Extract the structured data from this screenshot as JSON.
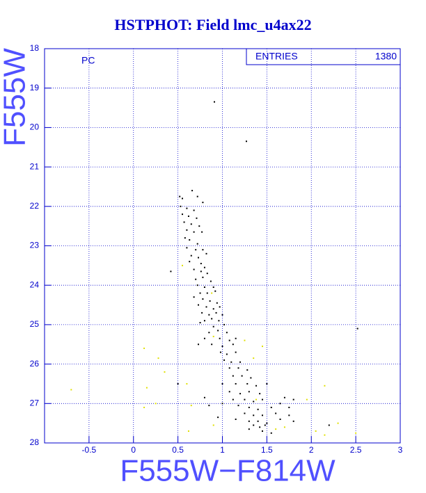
{
  "chart_data": {
    "type": "scatter",
    "title": "HSTPHOT: Field lmc_u4ax22",
    "xlabel": "F555W−F814W",
    "ylabel": "F555W",
    "annotation": "PC",
    "stats_box": {
      "label": "ENTRIES",
      "value": "1380"
    },
    "xlim": [
      -1,
      3
    ],
    "ylim": [
      28,
      18
    ],
    "xticks": [
      -0.5,
      0,
      0.5,
      1,
      1.5,
      2,
      2.5,
      3
    ],
    "yticks": [
      18,
      19,
      20,
      21,
      22,
      23,
      24,
      25,
      26,
      27,
      28
    ],
    "grid": true,
    "axis_color": "#0000cc",
    "series": [
      {
        "color": "#000000",
        "x": [
          0.91,
          1.27,
          0.52,
          0.55,
          0.66,
          0.72,
          0.78,
          0.53,
          0.6,
          0.68,
          0.55,
          0.62,
          0.71,
          0.57,
          0.65,
          0.74,
          0.6,
          0.68,
          0.77,
          0.58,
          0.63,
          0.72,
          0.6,
          0.7,
          0.78,
          0.65,
          0.73,
          0.82,
          0.63,
          0.76,
          0.8,
          0.68,
          0.42,
          0.76,
          0.83,
          0.7,
          0.78,
          0.87,
          0.72,
          0.8,
          0.9,
          0.75,
          0.83,
          0.92,
          0.68,
          0.78,
          0.86,
          0.94,
          0.73,
          0.82,
          0.9,
          0.97,
          0.77,
          0.85,
          0.93,
          1.0,
          0.8,
          0.88,
          0.96,
          0.75,
          0.9,
          1.02,
          0.85,
          0.95,
          1.05,
          0.8,
          0.97,
          1.08,
          1.15,
          0.73,
          0.88,
          1.0,
          1.12,
          0.98,
          1.05,
          1.15,
          1.02,
          1.1,
          1.2,
          1.08,
          1.18,
          1.28,
          1.12,
          1.22,
          1.32,
          1.0,
          1.15,
          1.28,
          1.38,
          1.5,
          1.08,
          1.2,
          1.3,
          1.42,
          0.8,
          1.12,
          1.25,
          1.35,
          1.45,
          1.7,
          1.8,
          0.85,
          1.0,
          1.18,
          1.3,
          1.4,
          1.55,
          1.65,
          1.75,
          1.25,
          1.35,
          1.45,
          1.6,
          1.75,
          0.95,
          1.15,
          1.3,
          1.4,
          1.5,
          1.65,
          1.8,
          1.35,
          1.42,
          1.48,
          1.3,
          1.45,
          1.55,
          0.5,
          2.52,
          2.2
        ],
        "y": [
          19.35,
          20.35,
          21.75,
          21.8,
          21.6,
          21.75,
          21.9,
          22.0,
          22.05,
          22.1,
          22.2,
          22.25,
          22.3,
          22.4,
          22.45,
          22.5,
          22.6,
          22.65,
          22.65,
          22.8,
          22.85,
          22.95,
          23.05,
          23.1,
          23.1,
          23.25,
          23.3,
          23.2,
          23.4,
          23.45,
          23.55,
          23.6,
          23.65,
          23.65,
          23.7,
          23.85,
          23.8,
          23.9,
          24.0,
          24.05,
          24.05,
          24.2,
          24.2,
          24.15,
          24.3,
          24.35,
          24.4,
          24.45,
          24.5,
          24.55,
          24.6,
          24.55,
          24.7,
          24.75,
          24.7,
          24.75,
          24.9,
          24.85,
          24.9,
          24.95,
          25.05,
          25.0,
          25.2,
          25.15,
          25.2,
          25.35,
          25.35,
          25.4,
          25.35,
          25.5,
          25.5,
          25.55,
          25.5,
          25.7,
          25.75,
          25.7,
          25.9,
          25.95,
          25.95,
          26.1,
          26.1,
          26.15,
          26.3,
          26.3,
          26.35,
          26.5,
          26.5,
          26.5,
          26.55,
          26.5,
          26.7,
          26.75,
          26.7,
          26.75,
          26.85,
          26.9,
          26.9,
          26.95,
          26.9,
          26.85,
          26.9,
          27.05,
          27.0,
          27.05,
          27.1,
          27.15,
          27.1,
          27.0,
          27.1,
          27.25,
          27.3,
          27.3,
          27.25,
          27.3,
          27.35,
          27.4,
          27.45,
          27.45,
          27.5,
          27.4,
          27.45,
          27.55,
          27.6,
          27.55,
          27.65,
          27.7,
          27.75,
          26.5,
          25.1,
          27.55
        ]
      },
      {
        "color": "#e0e000",
        "x": [
          -0.7,
          0.12,
          0.28,
          0.35,
          0.15,
          0.6,
          0.12,
          0.25,
          0.62,
          0.9,
          1.25,
          1.45,
          1.35,
          0.55,
          0.88,
          0.9,
          1.7,
          2.05,
          2.15,
          2.3,
          1.95,
          2.15,
          1.38,
          0.65,
          1.6,
          2.5
        ],
        "y": [
          26.65,
          25.6,
          25.85,
          26.2,
          26.6,
          26.5,
          27.1,
          27.0,
          27.7,
          27.55,
          25.4,
          25.55,
          25.85,
          23.5,
          24.2,
          25.3,
          27.6,
          27.7,
          27.8,
          27.5,
          26.9,
          26.55,
          26.9,
          27.05,
          27.65,
          27.75
        ]
      }
    ]
  }
}
